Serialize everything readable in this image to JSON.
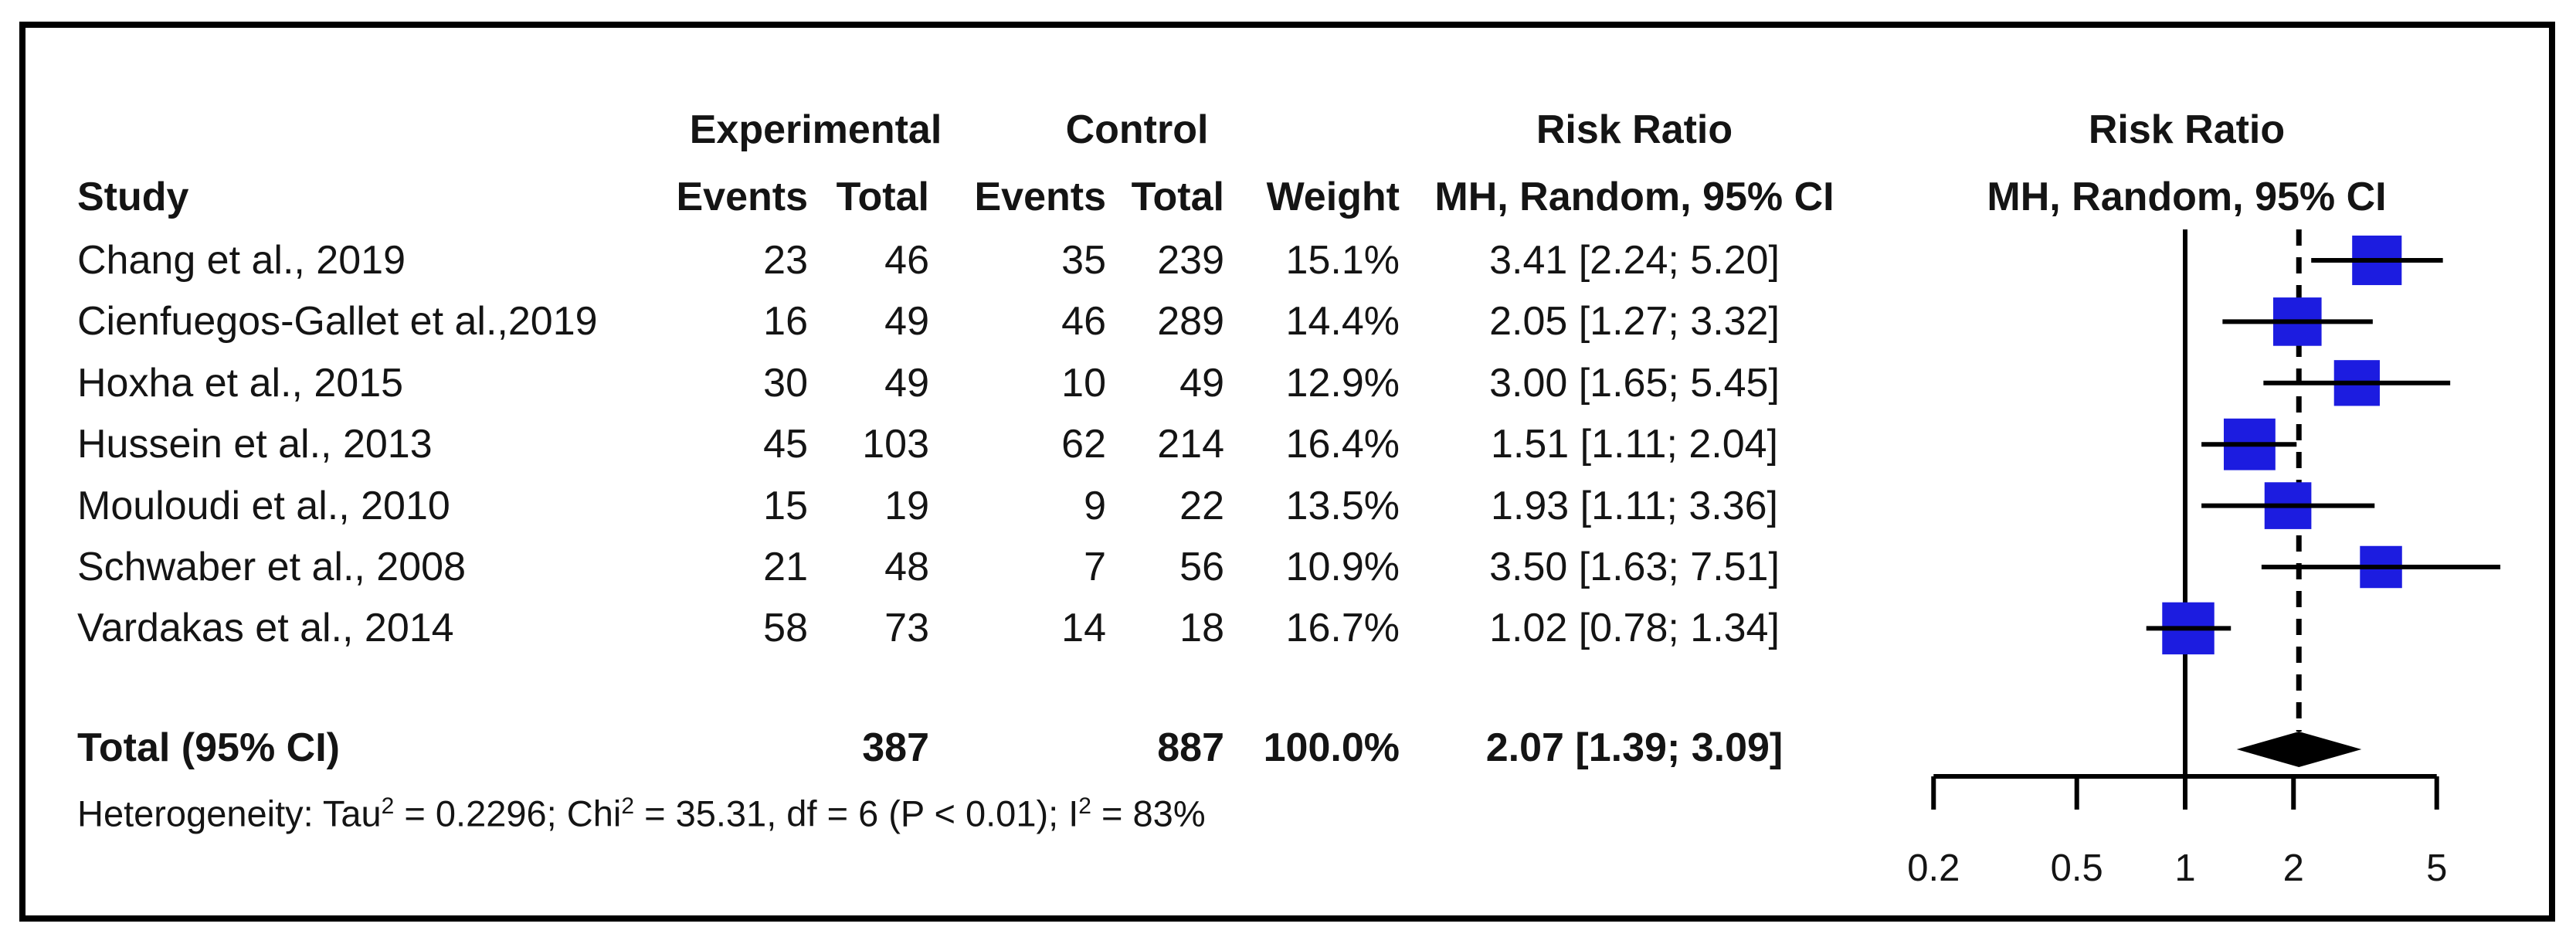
{
  "colors": {
    "square_blue": "#1c1ce0",
    "line_black": "#000000",
    "text_black": "#141414",
    "frame_black": "#000000",
    "background": "#ffffff"
  },
  "header": {
    "experimental": "Experimental",
    "control": "Control",
    "risk_ratio_text_col": "Risk Ratio",
    "risk_ratio_plot_col": "Risk Ratio",
    "study": "Study",
    "events_exp": "Events",
    "total_exp": "Total",
    "events_ctrl": "Events",
    "total_ctrl": "Total",
    "weight": "Weight",
    "mh_random_ci_text_col": "MH, Random, 95% CI",
    "mh_random_ci_plot_col": "MH, Random, 95% CI"
  },
  "rows": [
    {
      "study": "Chang et al., 2019",
      "exp_events": "23",
      "exp_total": "46",
      "ctrl_events": "35",
      "ctrl_total": "239",
      "weight": "15.1%",
      "rr_ci": "3.41 [2.24; 5.20]"
    },
    {
      "study": "Cienfuegos-Gallet et al.,2019",
      "exp_events": "16",
      "exp_total": "49",
      "ctrl_events": "46",
      "ctrl_total": "289",
      "weight": "14.4%",
      "rr_ci": "2.05 [1.27; 3.32]"
    },
    {
      "study": "Hoxha et al., 2015",
      "exp_events": "30",
      "exp_total": "49",
      "ctrl_events": "10",
      "ctrl_total": "49",
      "weight": "12.9%",
      "rr_ci": "3.00 [1.65; 5.45]"
    },
    {
      "study": "Hussein et al., 2013",
      "exp_events": "45",
      "exp_total": "103",
      "ctrl_events": "62",
      "ctrl_total": "214",
      "weight": "16.4%",
      "rr_ci": "1.51 [1.11; 2.04]"
    },
    {
      "study": "Mouloudi et al., 2010",
      "exp_events": "15",
      "exp_total": "19",
      "ctrl_events": "9",
      "ctrl_total": "22",
      "weight": "13.5%",
      "rr_ci": "1.93 [1.11; 3.36]"
    },
    {
      "study": "Schwaber et al., 2008",
      "exp_events": "21",
      "exp_total": "48",
      "ctrl_events": "7",
      "ctrl_total": "56",
      "weight": "10.9%",
      "rr_ci": "3.50 [1.63; 7.51]"
    },
    {
      "study": "Vardakas et al., 2014",
      "exp_events": "58",
      "exp_total": "73",
      "ctrl_events": "14",
      "ctrl_total": "18",
      "weight": "16.7%",
      "rr_ci": "1.02 [0.78; 1.34]"
    }
  ],
  "total_row": {
    "label": "Total (95% CI)",
    "exp_total": "387",
    "ctrl_total": "887",
    "weight": "100.0%",
    "rr_ci": "2.07 [1.39; 3.09]"
  },
  "heterogeneity": {
    "segments": [
      {
        "text": "Heterogeneity: Tau",
        "sup": false
      },
      {
        "text": "2",
        "sup": true
      },
      {
        "text": " = 0.2296; Chi",
        "sup": false
      },
      {
        "text": "2",
        "sup": true
      },
      {
        "text": " = 35.31, df = 6 (P < 0.01); I",
        "sup": false
      },
      {
        "text": "2",
        "sup": true
      },
      {
        "text": " = 83%",
        "sup": false
      }
    ]
  },
  "chart_data": {
    "type": "forest",
    "effect_measure": "Risk Ratio",
    "model": "MH, Random, 95% CI",
    "x_scale": "log10",
    "x_range": [
      0.2,
      5
    ],
    "x_ticks": [
      0.2,
      0.5,
      1,
      2,
      5
    ],
    "x_tick_labels": [
      "0.2",
      "0.5",
      "1",
      "2",
      "5"
    ],
    "reference_line": 1,
    "pooled_dashed_line": 2.07,
    "studies": [
      {
        "name": "Chang et al., 2019",
        "rr": 3.41,
        "ci_low": 2.24,
        "ci_high": 5.2,
        "weight_pct": 15.1
      },
      {
        "name": "Cienfuegos-Gallet et al.,2019",
        "rr": 2.05,
        "ci_low": 1.27,
        "ci_high": 3.32,
        "weight_pct": 14.4
      },
      {
        "name": "Hoxha et al., 2015",
        "rr": 3.0,
        "ci_low": 1.65,
        "ci_high": 5.45,
        "weight_pct": 12.9
      },
      {
        "name": "Hussein et al., 2013",
        "rr": 1.51,
        "ci_low": 1.11,
        "ci_high": 2.04,
        "weight_pct": 16.4
      },
      {
        "name": "Mouloudi et al., 2010",
        "rr": 1.93,
        "ci_low": 1.11,
        "ci_high": 3.36,
        "weight_pct": 13.5
      },
      {
        "name": "Schwaber et al., 2008",
        "rr": 3.5,
        "ci_low": 1.63,
        "ci_high": 7.51,
        "weight_pct": 10.9
      },
      {
        "name": "Vardakas et al., 2014",
        "rr": 1.02,
        "ci_low": 0.78,
        "ci_high": 1.34,
        "weight_pct": 16.7
      }
    ],
    "overall": {
      "name": "Total (95% CI)",
      "rr": 2.07,
      "ci_low": 1.39,
      "ci_high": 3.09,
      "weight_pct": 100.0
    },
    "heterogeneity_note": "Heterogeneity: Tau2 = 0.2296; Chi2 = 35.31, df = 6 (P < 0.01); I2 = 83%"
  }
}
